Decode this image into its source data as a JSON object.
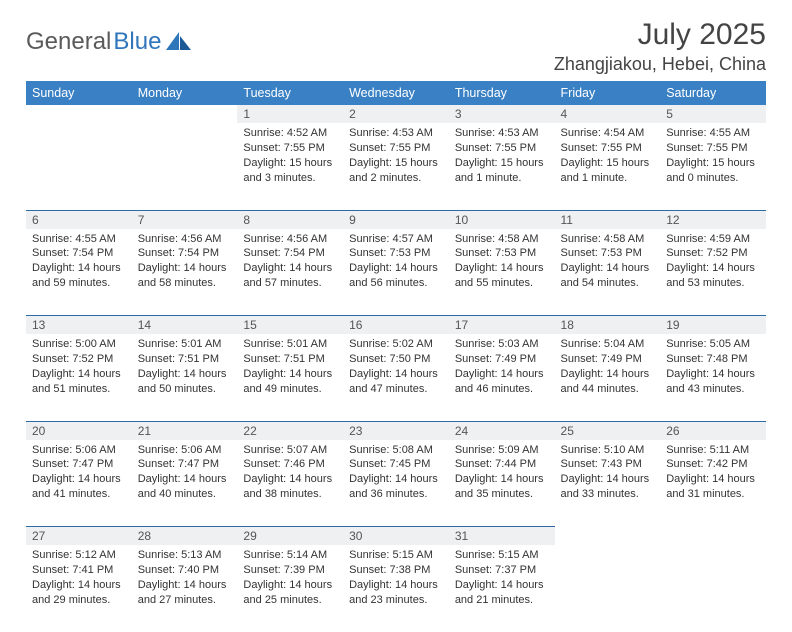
{
  "brand": {
    "part1": "General",
    "part2": "Blue"
  },
  "title": "July 2025",
  "location": "Zhangjiakou, Hebei, China",
  "theme": {
    "header_bg": "#3a80c4",
    "header_text": "#ffffff",
    "daynum_bg": "#eef0f2",
    "row_border": "#2f6aa8",
    "page_bg": "#ffffff",
    "body_text": "#333333",
    "title_text": "#444444"
  },
  "weekdays": [
    "Sunday",
    "Monday",
    "Tuesday",
    "Wednesday",
    "Thursday",
    "Friday",
    "Saturday"
  ],
  "weeks": [
    [
      null,
      null,
      {
        "n": "1",
        "sunrise": "4:52 AM",
        "sunset": "7:55 PM",
        "daylight": "15 hours and 3 minutes."
      },
      {
        "n": "2",
        "sunrise": "4:53 AM",
        "sunset": "7:55 PM",
        "daylight": "15 hours and 2 minutes."
      },
      {
        "n": "3",
        "sunrise": "4:53 AM",
        "sunset": "7:55 PM",
        "daylight": "15 hours and 1 minute."
      },
      {
        "n": "4",
        "sunrise": "4:54 AM",
        "sunset": "7:55 PM",
        "daylight": "15 hours and 1 minute."
      },
      {
        "n": "5",
        "sunrise": "4:55 AM",
        "sunset": "7:55 PM",
        "daylight": "15 hours and 0 minutes."
      }
    ],
    [
      {
        "n": "6",
        "sunrise": "4:55 AM",
        "sunset": "7:54 PM",
        "daylight": "14 hours and 59 minutes."
      },
      {
        "n": "7",
        "sunrise": "4:56 AM",
        "sunset": "7:54 PM",
        "daylight": "14 hours and 58 minutes."
      },
      {
        "n": "8",
        "sunrise": "4:56 AM",
        "sunset": "7:54 PM",
        "daylight": "14 hours and 57 minutes."
      },
      {
        "n": "9",
        "sunrise": "4:57 AM",
        "sunset": "7:53 PM",
        "daylight": "14 hours and 56 minutes."
      },
      {
        "n": "10",
        "sunrise": "4:58 AM",
        "sunset": "7:53 PM",
        "daylight": "14 hours and 55 minutes."
      },
      {
        "n": "11",
        "sunrise": "4:58 AM",
        "sunset": "7:53 PM",
        "daylight": "14 hours and 54 minutes."
      },
      {
        "n": "12",
        "sunrise": "4:59 AM",
        "sunset": "7:52 PM",
        "daylight": "14 hours and 53 minutes."
      }
    ],
    [
      {
        "n": "13",
        "sunrise": "5:00 AM",
        "sunset": "7:52 PM",
        "daylight": "14 hours and 51 minutes."
      },
      {
        "n": "14",
        "sunrise": "5:01 AM",
        "sunset": "7:51 PM",
        "daylight": "14 hours and 50 minutes."
      },
      {
        "n": "15",
        "sunrise": "5:01 AM",
        "sunset": "7:51 PM",
        "daylight": "14 hours and 49 minutes."
      },
      {
        "n": "16",
        "sunrise": "5:02 AM",
        "sunset": "7:50 PM",
        "daylight": "14 hours and 47 minutes."
      },
      {
        "n": "17",
        "sunrise": "5:03 AM",
        "sunset": "7:49 PM",
        "daylight": "14 hours and 46 minutes."
      },
      {
        "n": "18",
        "sunrise": "5:04 AM",
        "sunset": "7:49 PM",
        "daylight": "14 hours and 44 minutes."
      },
      {
        "n": "19",
        "sunrise": "5:05 AM",
        "sunset": "7:48 PM",
        "daylight": "14 hours and 43 minutes."
      }
    ],
    [
      {
        "n": "20",
        "sunrise": "5:06 AM",
        "sunset": "7:47 PM",
        "daylight": "14 hours and 41 minutes."
      },
      {
        "n": "21",
        "sunrise": "5:06 AM",
        "sunset": "7:47 PM",
        "daylight": "14 hours and 40 minutes."
      },
      {
        "n": "22",
        "sunrise": "5:07 AM",
        "sunset": "7:46 PM",
        "daylight": "14 hours and 38 minutes."
      },
      {
        "n": "23",
        "sunrise": "5:08 AM",
        "sunset": "7:45 PM",
        "daylight": "14 hours and 36 minutes."
      },
      {
        "n": "24",
        "sunrise": "5:09 AM",
        "sunset": "7:44 PM",
        "daylight": "14 hours and 35 minutes."
      },
      {
        "n": "25",
        "sunrise": "5:10 AM",
        "sunset": "7:43 PM",
        "daylight": "14 hours and 33 minutes."
      },
      {
        "n": "26",
        "sunrise": "5:11 AM",
        "sunset": "7:42 PM",
        "daylight": "14 hours and 31 minutes."
      }
    ],
    [
      {
        "n": "27",
        "sunrise": "5:12 AM",
        "sunset": "7:41 PM",
        "daylight": "14 hours and 29 minutes."
      },
      {
        "n": "28",
        "sunrise": "5:13 AM",
        "sunset": "7:40 PM",
        "daylight": "14 hours and 27 minutes."
      },
      {
        "n": "29",
        "sunrise": "5:14 AM",
        "sunset": "7:39 PM",
        "daylight": "14 hours and 25 minutes."
      },
      {
        "n": "30",
        "sunrise": "5:15 AM",
        "sunset": "7:38 PM",
        "daylight": "14 hours and 23 minutes."
      },
      {
        "n": "31",
        "sunrise": "5:15 AM",
        "sunset": "7:37 PM",
        "daylight": "14 hours and 21 minutes."
      },
      null,
      null
    ]
  ],
  "labels": {
    "sunrise": "Sunrise:",
    "sunset": "Sunset:",
    "daylight": "Daylight:"
  }
}
